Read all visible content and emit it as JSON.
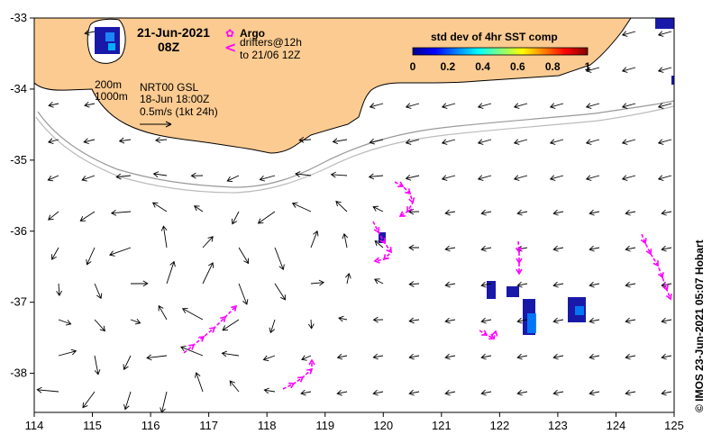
{
  "map": {
    "date": "21-Jun-2021",
    "hour": "08Z",
    "x_ticks": [
      "114",
      "115",
      "116",
      "117",
      "118",
      "119",
      "120",
      "121",
      "122",
      "123",
      "124",
      "125"
    ],
    "y_ticks": [
      "-33",
      "-34",
      "-35",
      "-36",
      "-37",
      "-38"
    ],
    "extent": {
      "lon": [
        114,
        125
      ],
      "lat": [
        -38.55,
        -33
      ]
    },
    "land_color": "#FBCB91",
    "vector_color": "#000000",
    "drifter_color": "#FF00FF",
    "sst_color": "#0000A0"
  },
  "legend": {
    "argo_label": "Argo",
    "drifter_label": "drifters@12h",
    "drifter_range": "to 21/06 12Z",
    "argo_symbol": "✿",
    "drifter_symbol": "<"
  },
  "info": {
    "iso200": "200m",
    "iso1000": "1000m",
    "product": "NRT00 GSL",
    "product_time": "18-Jun 18:00Z",
    "scale": "0.5m/s (1kt 24h)"
  },
  "colorbar": {
    "title": "std dev of 4hr SST comp",
    "ticks": [
      "0",
      "0.2",
      "0.4",
      "0.6",
      "0.8",
      "1"
    ],
    "colors": [
      "#00008F",
      "#0000FF",
      "#0080FF",
      "#00FFFF",
      "#80FF80",
      "#FFFF00",
      "#FF8000",
      "#FF0000",
      "#800000"
    ]
  },
  "credit": "© IMOS 23-Jun-2021 05:07 Hobart"
}
